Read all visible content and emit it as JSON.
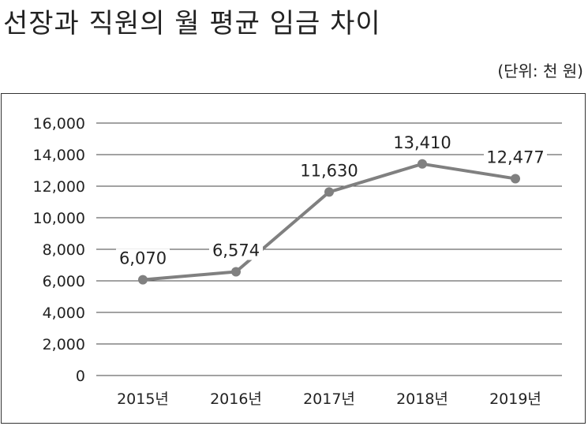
{
  "title": "선장과 직원의 월 평균 임금 차이",
  "unit_label": "(단위: 천 원)",
  "chart_data": {
    "type": "line",
    "title": "선장과 직원의 월 평균 임금 차이",
    "unit": "(단위: 천 원)",
    "categories": [
      "2015년",
      "2016년",
      "2017년",
      "2018년",
      "2019년"
    ],
    "series": [
      {
        "values": [
          6070,
          6574,
          11630,
          13410,
          12477
        ]
      }
    ],
    "data_labels": [
      "6,070",
      "6,574",
      "11,630",
      "13,410",
      "12,477"
    ],
    "y_ticks": [
      "0",
      "2,000",
      "4,000",
      "6,000",
      "8,000",
      "10,000",
      "12,000",
      "14,000",
      "16,000"
    ],
    "ylim": [
      0,
      16000
    ],
    "grid": true,
    "legend": "none",
    "line_color": "#808080"
  }
}
